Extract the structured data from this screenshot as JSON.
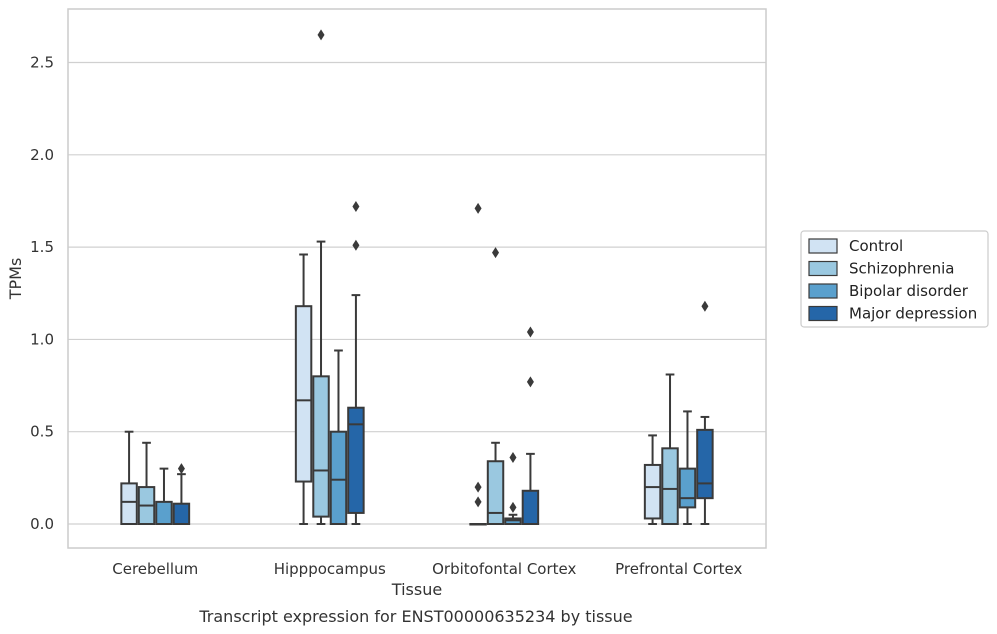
{
  "chart_data": {
    "type": "box",
    "caption": "Transcript expression for ENST00000635234 by tissue",
    "xlabel": "Tissue",
    "ylabel": "TPMs",
    "ylim": [
      -0.13,
      2.79
    ],
    "yticks": [
      "0.0",
      "0.5",
      "1.0",
      "1.5",
      "2.0",
      "2.5"
    ],
    "ytick_values": [
      0,
      0.5,
      1.0,
      1.5,
      2.0,
      2.5
    ],
    "grid": "horizontal",
    "legend_position": "right",
    "categories": [
      "Cerebellum",
      "Hipppocampus",
      "Orbitofontal Cortex",
      "Prefrontal Cortex"
    ],
    "series": [
      {
        "name": "Control",
        "color": "#d1e3f3",
        "boxes": [
          {
            "whislo": 0,
            "q1": 0,
            "med": 0.12,
            "q3": 0.22,
            "whishi": 0.5,
            "fliers": []
          },
          {
            "whislo": 0,
            "q1": 0.23,
            "med": 0.67,
            "q3": 1.18,
            "whishi": 1.46,
            "fliers": []
          },
          {
            "whislo": 0,
            "q1": 0,
            "med": 0,
            "q3": 0,
            "whishi": 0,
            "fliers": [
              0.12,
              0.2,
              1.71
            ]
          },
          {
            "whislo": 0,
            "q1": 0.03,
            "med": 0.2,
            "q3": 0.32,
            "whishi": 0.48,
            "fliers": []
          }
        ]
      },
      {
        "name": "Schizophrenia",
        "color": "#9ac8e0",
        "boxes": [
          {
            "whislo": 0,
            "q1": 0,
            "med": 0.1,
            "q3": 0.2,
            "whishi": 0.44,
            "fliers": []
          },
          {
            "whislo": 0,
            "q1": 0.04,
            "med": 0.29,
            "q3": 0.8,
            "whishi": 1.53,
            "fliers": [
              2.65
            ]
          },
          {
            "whislo": 0,
            "q1": 0,
            "med": 0.06,
            "q3": 0.34,
            "whishi": 0.44,
            "fliers": [
              1.47
            ]
          },
          {
            "whislo": 0,
            "q1": 0,
            "med": 0.19,
            "q3": 0.41,
            "whishi": 0.81,
            "fliers": []
          }
        ]
      },
      {
        "name": "Bipolar disorder",
        "color": "#5aa0cd",
        "boxes": [
          {
            "whislo": 0,
            "q1": 0,
            "med": 0.0,
            "q3": 0.12,
            "whishi": 0.3,
            "fliers": []
          },
          {
            "whislo": 0,
            "q1": 0,
            "med": 0.24,
            "q3": 0.5,
            "whishi": 0.94,
            "fliers": []
          },
          {
            "whislo": 0,
            "q1": 0,
            "med": 0.02,
            "q3": 0.03,
            "whishi": 0.05,
            "fliers": [
              0.09,
              0.36
            ]
          },
          {
            "whislo": 0,
            "q1": 0.09,
            "med": 0.14,
            "q3": 0.3,
            "whishi": 0.61,
            "fliers": []
          }
        ]
      },
      {
        "name": "Major depression",
        "color": "#2566a8",
        "boxes": [
          {
            "whislo": 0,
            "q1": 0,
            "med": 0,
            "q3": 0.11,
            "whishi": 0.27,
            "fliers": [
              0.3
            ]
          },
          {
            "whislo": 0,
            "q1": 0.06,
            "med": 0.54,
            "q3": 0.63,
            "whishi": 1.24,
            "fliers": [
              1.51,
              1.72
            ]
          },
          {
            "whislo": 0,
            "q1": 0,
            "med": 0,
            "q3": 0.18,
            "whishi": 0.38,
            "fliers": [
              0.77,
              1.04
            ]
          },
          {
            "whislo": 0,
            "q1": 0.14,
            "med": 0.22,
            "q3": 0.51,
            "whishi": 0.58,
            "fliers": [
              1.18
            ]
          }
        ]
      }
    ]
  }
}
